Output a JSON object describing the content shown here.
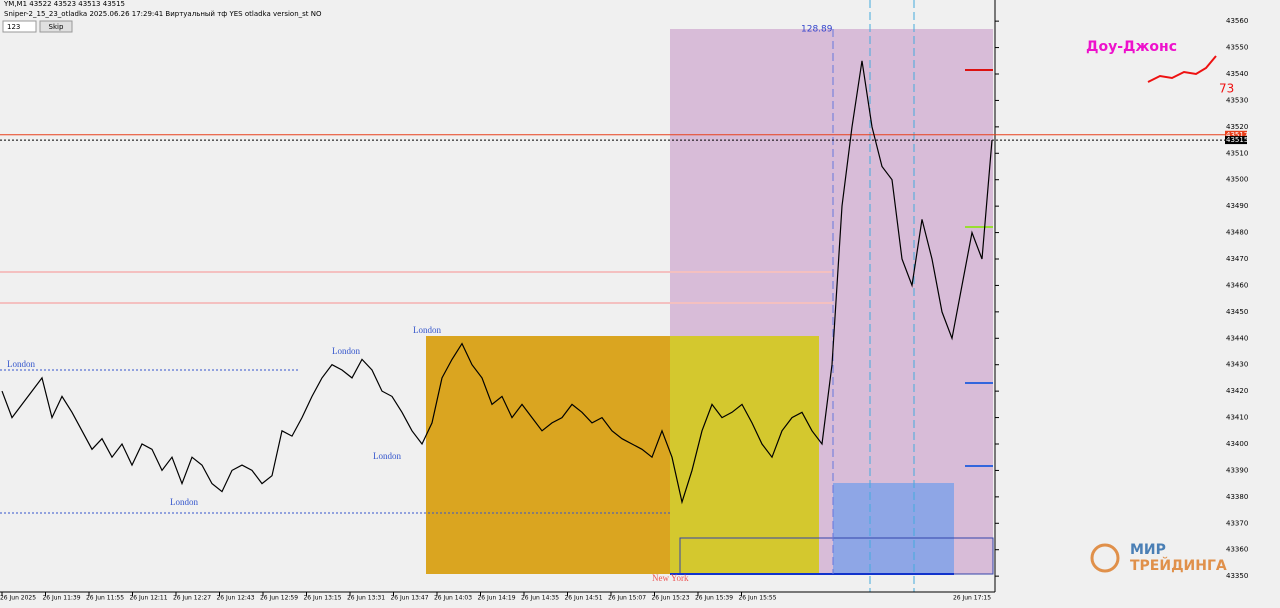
{
  "chart_data": {
    "type": "line",
    "symbol_line": "YM,M1  43522 43523 43513 43515",
    "indicator_line": "Sniper-2_15_23_otladka  2025.06.26 17:29:41  Виртуальный тф YES  otladka  version_st NO",
    "input_value": "123",
    "button": "Skip",
    "range_label": "128.89",
    "instrument_label": "Доу-Джонс",
    "counter_label": "73",
    "session_labels": [
      "London",
      "London",
      "London",
      "London",
      "London",
      "New York"
    ],
    "logo": [
      "МИР",
      "ТРЕЙДИНГА"
    ],
    "color": "#000000",
    "values": [
      43420,
      43410,
      43415,
      43420,
      43425,
      43410,
      43418,
      43412,
      43405,
      43398,
      43402,
      43395,
      43400,
      43392,
      43400,
      43398,
      43390,
      43395,
      43385,
      43395,
      43392,
      43385,
      43382,
      43390,
      43392,
      43390,
      43385,
      43388,
      43405,
      43403,
      43410,
      43418,
      43425,
      43430,
      43428,
      43425,
      43432,
      43428,
      43420,
      43418,
      43412,
      43405,
      43400,
      43408,
      43425,
      43432,
      43438,
      43430,
      43425,
      43415,
      43418,
      43410,
      43415,
      43410,
      43405,
      43408,
      43410,
      43415,
      43412,
      43408,
      43410,
      43405,
      43402,
      43400,
      43398,
      43395,
      43405,
      43395,
      43378,
      43390,
      43405,
      43415,
      43410,
      43412,
      43415,
      43408,
      43400,
      43395,
      43405,
      43410,
      43412,
      43405,
      43400,
      43430,
      43490,
      43520,
      43545,
      43520,
      43505,
      43500,
      43470,
      43460,
      43485,
      43470,
      43450,
      43440,
      43460,
      43480,
      43470,
      43515
    ],
    "ylim": [
      43344,
      43568
    ],
    "yticks": [
      43350,
      43360,
      43370,
      43380,
      43390,
      43400,
      43410,
      43420,
      43430,
      43440,
      43450,
      43460,
      43470,
      43480,
      43490,
      43500,
      43510,
      43520,
      43530,
      43540,
      43550,
      43560
    ],
    "price_lines": [
      {
        "value": 43517,
        "color": "#e8401c"
      },
      {
        "value": 43515,
        "color": "#000000"
      }
    ],
    "time_labels": [
      "26 Jun 2025",
      "26 Jun 11:39",
      "26 Jun 11:55",
      "26 Jun 12:11",
      "26 Jun 12:27",
      "26 Jun 12:43",
      "26 Jun 12:59",
      "26 Jun 13:15",
      "26 Jun 13:31",
      "26 Jun 13:47",
      "26 Jun 14:03",
      "26 Jun 14:19",
      "26 Jun 14:35",
      "26 Jun 14:51",
      "26 Jun 15:07",
      "26 Jun 15:23",
      "26 Jun 15:39",
      "26 Jun 15:55"
    ],
    "last_time_label": "26 Jun 17:15"
  }
}
